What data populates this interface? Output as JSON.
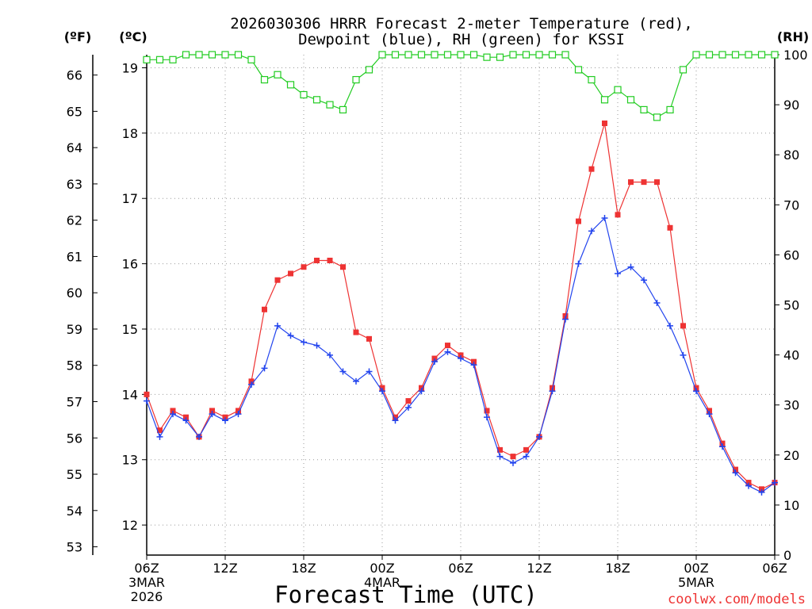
{
  "chart_data": {
    "type": "line",
    "title_line1": "2026030306 HRRR Forecast 2-meter Temperature (red),",
    "title_line2": "Dewpoint (blue), RH (green) for KSSI",
    "xlabel": "Forecast Time (UTC)",
    "credit": "coolwx.com/models",
    "unit_left_f": "(ºF)",
    "unit_left_c": "(ºC)",
    "unit_right": "(RH)",
    "xlim": [
      0,
      48
    ],
    "ylim_c": [
      11.54,
      19.2
    ],
    "ylim_rh": [
      0,
      100
    ],
    "x_ticks": [
      {
        "x": 0,
        "label": "06Z",
        "sub1": "3MAR",
        "sub2": "2026"
      },
      {
        "x": 6,
        "label": "12Z"
      },
      {
        "x": 12,
        "label": "18Z"
      },
      {
        "x": 18,
        "label": "00Z",
        "sub1": "4MAR"
      },
      {
        "x": 24,
        "label": "06Z"
      },
      {
        "x": 30,
        "label": "12Z"
      },
      {
        "x": 36,
        "label": "18Z"
      },
      {
        "x": 42,
        "label": "00Z",
        "sub1": "5MAR"
      },
      {
        "x": 48,
        "label": "06Z"
      }
    ],
    "y_ticks_c": [
      12,
      13,
      14,
      15,
      16,
      17,
      18,
      19
    ],
    "y_ticks_f": [
      53,
      54,
      55,
      56,
      57,
      58,
      59,
      60,
      61,
      62,
      63,
      64,
      65,
      66
    ],
    "y_ticks_rh": [
      0,
      10,
      20,
      30,
      40,
      50,
      60,
      70,
      80,
      90,
      100
    ],
    "series": [
      {
        "name": "Temperature",
        "unit": "C",
        "color": "#ee3333",
        "marker": "filled-square",
        "values": [
          14.0,
          13.45,
          13.75,
          13.65,
          13.35,
          13.75,
          13.65,
          13.75,
          14.2,
          15.3,
          15.75,
          15.85,
          15.95,
          16.05,
          16.05,
          15.95,
          14.95,
          14.85,
          14.1,
          13.65,
          13.9,
          14.1,
          14.55,
          14.75,
          14.6,
          14.5,
          13.75,
          13.15,
          13.05,
          13.15,
          13.35,
          14.1,
          15.2,
          16.65,
          17.45,
          18.15,
          16.75,
          17.25,
          17.25,
          17.25,
          16.55,
          15.05,
          14.1,
          13.75,
          13.25,
          12.85,
          12.65,
          12.55,
          12.65
        ]
      },
      {
        "name": "Dewpoint",
        "unit": "C",
        "color": "#2244ee",
        "marker": "plus",
        "values": [
          13.9,
          13.35,
          13.7,
          13.6,
          13.35,
          13.7,
          13.6,
          13.7,
          14.15,
          14.4,
          15.05,
          14.9,
          14.8,
          14.75,
          14.6,
          14.35,
          14.2,
          14.35,
          14.05,
          13.6,
          13.8,
          14.05,
          14.5,
          14.65,
          14.55,
          14.45,
          13.65,
          13.05,
          12.95,
          13.05,
          13.35,
          14.05,
          15.15,
          16.0,
          16.5,
          16.7,
          15.85,
          15.95,
          15.75,
          15.4,
          15.05,
          14.6,
          14.05,
          13.7,
          13.2,
          12.8,
          12.6,
          12.5,
          12.65
        ]
      },
      {
        "name": "Relative Humidity",
        "unit": "%",
        "color": "#22cc22",
        "marker": "open-square",
        "values": [
          99,
          99,
          99,
          100,
          100,
          100,
          100,
          100,
          99,
          95,
          96,
          94,
          92,
          91,
          90,
          89,
          95,
          97,
          100,
          100,
          100,
          100,
          100,
          100,
          100,
          100,
          99.5,
          99.5,
          100,
          100,
          100,
          100,
          100,
          97,
          95,
          91,
          93,
          91,
          89,
          87.5,
          89,
          97,
          100,
          100,
          100,
          100,
          100,
          100,
          100
        ]
      }
    ]
  }
}
